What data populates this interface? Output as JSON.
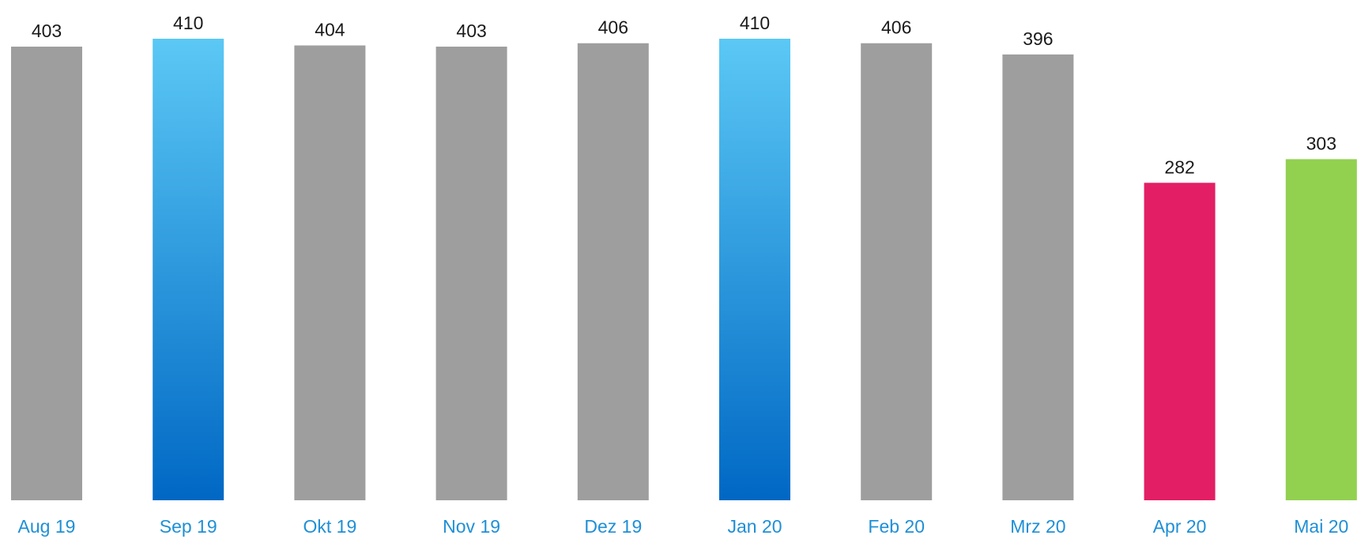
{
  "chart_data": {
    "type": "bar",
    "title": "",
    "xlabel": "",
    "ylabel": "",
    "categories": [
      "Aug 19",
      "Sep 19",
      "Okt 19",
      "Nov 19",
      "Dez 19",
      "Jan 20",
      "Feb 20",
      "Mrz 20",
      "Apr 20",
      "Mai 20"
    ],
    "values": [
      403,
      410,
      404,
      403,
      406,
      410,
      406,
      396,
      282,
      303
    ],
    "ylim": [
      0,
      410
    ],
    "grid": false,
    "legend": "none",
    "data_labels": true,
    "bar_styles": [
      "gray",
      "blue-gradient",
      "gray",
      "gray",
      "gray",
      "blue-gradient",
      "gray",
      "gray",
      "red",
      "green"
    ]
  },
  "colors": {
    "gray": "#9e9e9e",
    "red": "#e31e64",
    "green": "#92d050",
    "gradient_top": "#5bc8f5",
    "gradient_bottom": "#0068c4",
    "tick_text": "#1f8fd6",
    "value_text": "#1a1a1a"
  }
}
